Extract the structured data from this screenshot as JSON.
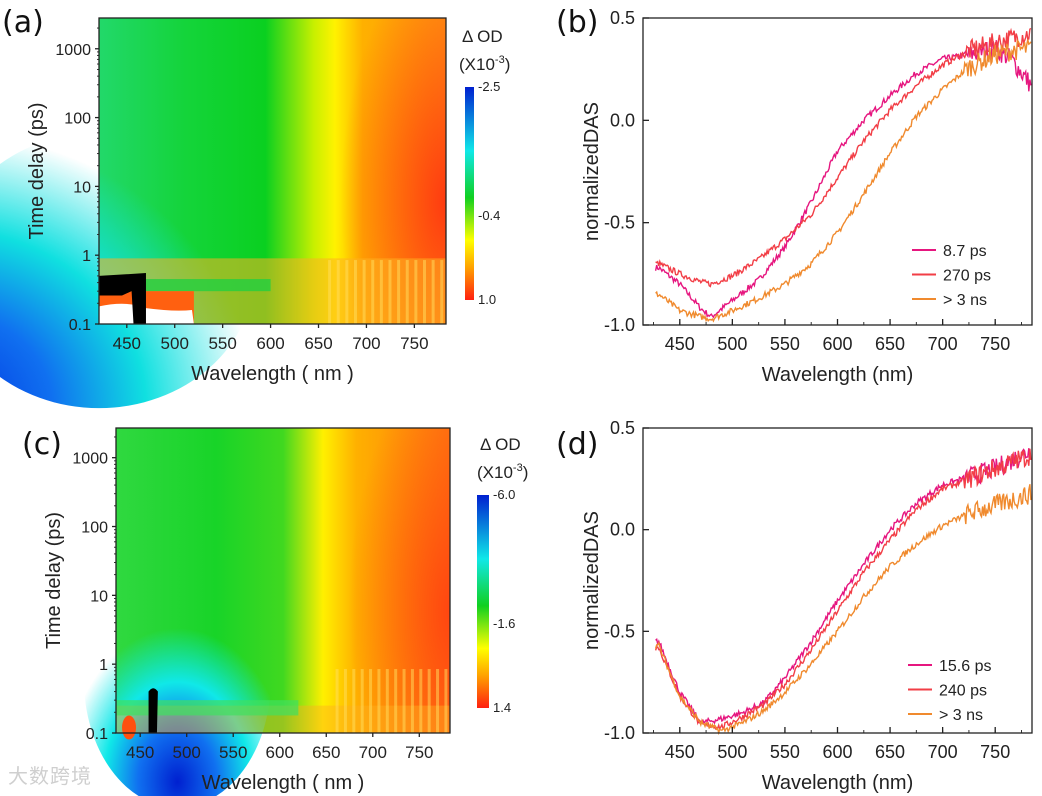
{
  "watermark": "大数跨境",
  "colors": {
    "c1": "#e6167f",
    "c2": "#f23e46",
    "c3": "#f08a2e"
  },
  "chart_data": [
    {
      "id": "a",
      "panel_label": "(a)",
      "type": "heatmap",
      "xlabel": "Wavelength ( nm )",
      "ylabel": "Time delay (ps)",
      "xlim": [
        421,
        783
      ],
      "ylim": [
        0.1,
        2800
      ],
      "yscale": "log",
      "xticks": [
        450,
        500,
        550,
        600,
        650,
        700,
        750
      ],
      "yticks": [
        {
          "v": 0.1,
          "label": "0.1"
        },
        {
          "v": 1,
          "label": "1"
        },
        {
          "v": 10,
          "label": "10"
        },
        {
          "v": 100,
          "label": "100"
        },
        {
          "v": 1000,
          "label": "1000"
        }
      ],
      "colorbar": {
        "title": "Δ OD",
        "unit_base": "(X10",
        "unit_exp": "-3",
        "unit_close": ")",
        "labels": [
          "-2.5",
          "-0.4",
          "1.0"
        ],
        "range": [
          -2.5,
          1.0
        ]
      }
    },
    {
      "id": "b",
      "panel_label": "(b)",
      "type": "line",
      "xlabel": "Wavelength (nm)",
      "ylabel": "normalizedDAS",
      "xlim": [
        415,
        785
      ],
      "ylim": [
        -1.0,
        0.5
      ],
      "xticks": [
        450,
        500,
        550,
        600,
        650,
        700,
        750
      ],
      "yticks": [
        {
          "v": -1.0,
          "label": "-1.0"
        },
        {
          "v": -0.5,
          "label": "-0.5"
        },
        {
          "v": 0.0,
          "label": "0.0"
        },
        {
          "v": 0.5,
          "label": "0.5"
        }
      ],
      "legend": "bottom-right",
      "x": [
        430,
        450,
        470,
        480,
        500,
        525,
        550,
        575,
        600,
        625,
        650,
        675,
        700,
        725,
        750,
        765,
        780
      ],
      "series": [
        {
          "name": "8.7 ps",
          "color": "#e6167f",
          "values": [
            -0.72,
            -0.8,
            -0.92,
            -0.96,
            -0.88,
            -0.78,
            -0.62,
            -0.4,
            -0.15,
            0.0,
            0.12,
            0.23,
            0.3,
            0.32,
            0.35,
            0.3,
            0.2
          ]
        },
        {
          "name": "270 ps",
          "color": "#f23e46",
          "values": [
            -0.7,
            -0.75,
            -0.79,
            -0.8,
            -0.76,
            -0.68,
            -0.58,
            -0.46,
            -0.28,
            -0.1,
            0.05,
            0.17,
            0.27,
            0.34,
            0.38,
            0.4,
            0.42
          ]
        },
        {
          "name": "> 3 ns",
          "color": "#f08a2e",
          "values": [
            -0.85,
            -0.93,
            -0.96,
            -0.97,
            -0.93,
            -0.87,
            -0.8,
            -0.7,
            -0.55,
            -0.36,
            -0.16,
            0.02,
            0.15,
            0.26,
            0.32,
            0.34,
            0.35
          ]
        }
      ]
    },
    {
      "id": "c",
      "panel_label": "(c)",
      "type": "heatmap",
      "xlabel": "Wavelength ( nm )",
      "ylabel": "Time delay (ps)",
      "xlim": [
        424,
        783
      ],
      "ylim": [
        0.1,
        2700
      ],
      "yscale": "log",
      "xticks": [
        450,
        500,
        550,
        600,
        650,
        700,
        750
      ],
      "yticks": [
        {
          "v": 0.1,
          "label": "0.1"
        },
        {
          "v": 1,
          "label": "1"
        },
        {
          "v": 10,
          "label": "10"
        },
        {
          "v": 100,
          "label": "100"
        },
        {
          "v": 1000,
          "label": "1000"
        }
      ],
      "colorbar": {
        "title": "Δ OD",
        "unit_base": "(X10",
        "unit_exp": "-3",
        "unit_close": ")",
        "labels": [
          "-6.0",
          "-1.6",
          "1.4"
        ],
        "range": [
          -6.0,
          1.4
        ]
      }
    },
    {
      "id": "d",
      "panel_label": "(d)",
      "type": "line",
      "xlabel": "Wavelength (nm)",
      "ylabel": "normalizedDAS",
      "xlim": [
        415,
        785
      ],
      "ylim": [
        -1.0,
        0.5
      ],
      "xticks": [
        450,
        500,
        550,
        600,
        650,
        700,
        750
      ],
      "yticks": [
        {
          "v": -1.0,
          "label": "-1.0"
        },
        {
          "v": -0.5,
          "label": "-0.5"
        },
        {
          "v": 0.0,
          "label": "0.0"
        },
        {
          "v": 0.5,
          "label": "0.5"
        }
      ],
      "legend": "bottom-right",
      "x": [
        430,
        450,
        470,
        490,
        510,
        530,
        550,
        575,
        600,
        625,
        650,
        675,
        700,
        725,
        750,
        780
      ],
      "series": [
        {
          "name": "15.6 ps",
          "color": "#e6167f",
          "values": [
            -0.55,
            -0.8,
            -0.95,
            -0.93,
            -0.9,
            -0.85,
            -0.73,
            -0.55,
            -0.35,
            -0.17,
            0.0,
            0.13,
            0.22,
            0.26,
            0.3,
            0.38
          ]
        },
        {
          "name": "240 ps",
          "color": "#f23e46",
          "values": [
            -0.58,
            -0.82,
            -0.96,
            -0.97,
            -0.92,
            -0.86,
            -0.76,
            -0.59,
            -0.4,
            -0.21,
            -0.05,
            0.1,
            0.2,
            0.25,
            0.3,
            0.36
          ]
        },
        {
          "name": "> 3 ns",
          "color": "#f08a2e",
          "values": [
            -0.57,
            -0.82,
            -0.95,
            -0.99,
            -0.95,
            -0.89,
            -0.8,
            -0.66,
            -0.5,
            -0.33,
            -0.18,
            -0.07,
            0.02,
            0.08,
            0.12,
            0.17
          ]
        }
      ]
    }
  ]
}
